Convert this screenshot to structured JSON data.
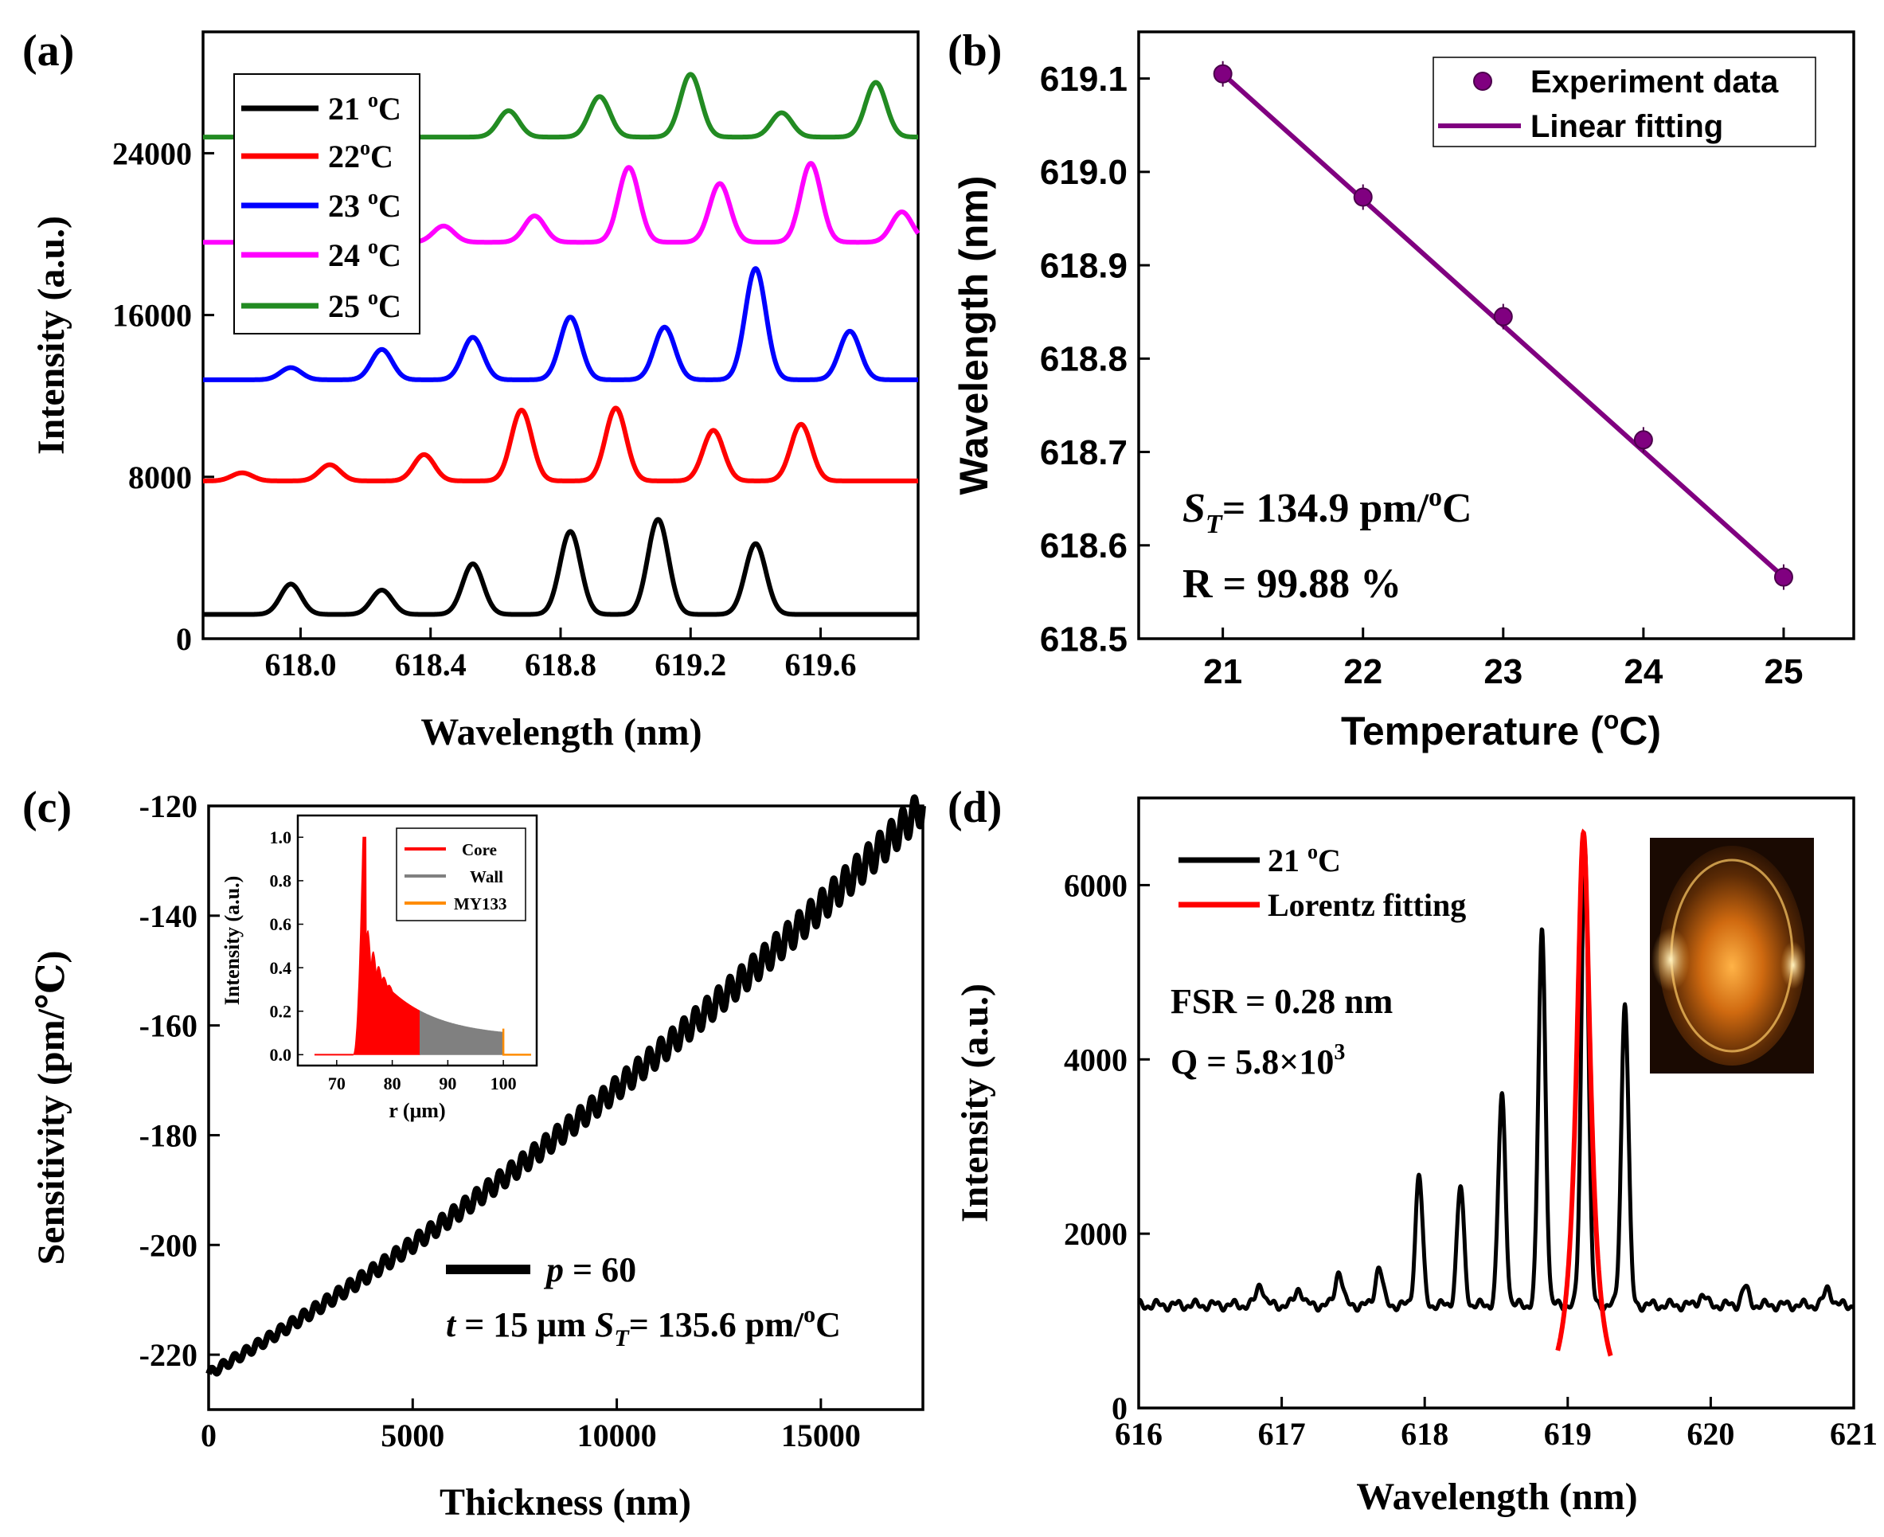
{
  "chart_data": [
    {
      "panel_label": "(a)",
      "type": "line",
      "xlabel": "Wavelength (nm)",
      "ylabel": "Intensity (a.u.)",
      "xlim": [
        617.7,
        619.9
      ],
      "ylim": [
        0,
        30000
      ],
      "xticks": [
        "618.0",
        "618.4",
        "618.8",
        "619.2",
        "619.6"
      ],
      "xtick_values": [
        618.0,
        618.4,
        618.8,
        619.2,
        619.6
      ],
      "yticks": [
        "0",
        "8000",
        "16000",
        "24000"
      ],
      "ytick_values": [
        0,
        8000,
        16000,
        24000
      ],
      "legend_position": "top-left",
      "series": [
        {
          "name": "21 °C",
          "label_base": "21 ",
          "label_sup": "o",
          "label_tail": "C",
          "color": "#000000",
          "baseline": 1200,
          "peaks": [
            [
              617.97,
              1500
            ],
            [
              618.25,
              1200
            ],
            [
              618.53,
              2500
            ],
            [
              618.83,
              4100
            ],
            [
              619.1,
              4700
            ],
            [
              619.4,
              3500
            ]
          ]
        },
        {
          "name": "22 °C",
          "label_base": "22",
          "label_sup": "o",
          "label_tail": "C",
          "color": "#ff0000",
          "baseline": 7800,
          "peaks": [
            [
              617.82,
              400
            ],
            [
              618.09,
              800
            ],
            [
              618.38,
              1300
            ],
            [
              618.68,
              3500
            ],
            [
              618.97,
              3600
            ],
            [
              619.27,
              2500
            ],
            [
              619.54,
              2800
            ]
          ]
        },
        {
          "name": "23 °C",
          "label_base": "23 ",
          "label_sup": "o",
          "label_tail": "C",
          "color": "#0000ff",
          "baseline": 12800,
          "peaks": [
            [
              617.97,
              600
            ],
            [
              618.25,
              1500
            ],
            [
              618.53,
              2100
            ],
            [
              618.83,
              3100
            ],
            [
              619.12,
              2600
            ],
            [
              619.4,
              5500
            ],
            [
              619.69,
              2400
            ]
          ]
        },
        {
          "name": "24 °C",
          "label_base": "24 ",
          "label_sup": "o",
          "label_tail": "C",
          "color": "#ff00ff",
          "baseline": 19600,
          "peaks": [
            [
              618.44,
              800
            ],
            [
              618.72,
              1300
            ],
            [
              619.01,
              3700
            ],
            [
              619.29,
              2900
            ],
            [
              619.57,
              3900
            ],
            [
              619.85,
              1500
            ]
          ]
        },
        {
          "name": "25 °C",
          "label_base": "25 ",
          "label_sup": "o",
          "label_tail": "C",
          "color": "#228b22",
          "baseline": 24800,
          "peaks": [
            [
              618.64,
              1300
            ],
            [
              618.92,
              2000
            ],
            [
              619.2,
              3100
            ],
            [
              619.48,
              1200
            ],
            [
              619.77,
              2700
            ]
          ]
        }
      ]
    },
    {
      "panel_label": "(b)",
      "type": "scatter",
      "xlabel_base": "Temperature (",
      "xlabel_sup": "o",
      "xlabel_tail": "C)",
      "ylabel": "Wavelength (nm)",
      "xlim": [
        20.4,
        25.5
      ],
      "ylim": [
        618.5,
        619.15
      ],
      "xticks": [
        "21",
        "22",
        "23",
        "24",
        "25"
      ],
      "xtick_values": [
        21,
        22,
        23,
        24,
        25
      ],
      "yticks": [
        "618.5",
        "618.6",
        "618.7",
        "618.8",
        "618.9",
        "619.0",
        "619.1"
      ],
      "ytick_values": [
        618.5,
        618.6,
        618.7,
        618.8,
        618.9,
        619.0,
        619.1
      ],
      "x": [
        21,
        22,
        23,
        24,
        25
      ],
      "y": [
        619.105,
        618.973,
        618.845,
        618.713,
        618.566
      ],
      "fit": {
        "x": [
          21,
          25
        ],
        "y": [
          619.105,
          618.566
        ]
      },
      "color": "#800080",
      "legend_position": "top-right",
      "legend": [
        "Experiment data",
        "Linear fitting"
      ],
      "annotation_st_sym": "S",
      "annotation_st_sub": "T",
      "annotation_st_val": "= 134.9 pm/",
      "annotation_st_sup": "o",
      "annotation_st_tail": "C",
      "annotation_r": "R = 99.88 %"
    },
    {
      "panel_label": "(c)",
      "type": "line",
      "xlabel": "Thickness (nm)",
      "ylabel": "Sensitivity (pm/℃)",
      "xlim": [
        0,
        17500
      ],
      "ylim": [
        -230,
        -120
      ],
      "xticks": [
        "0",
        "5000",
        "10000",
        "15000"
      ],
      "xtick_values": [
        0,
        5000,
        10000,
        15000
      ],
      "yticks": [
        "-220",
        "-200",
        "-180",
        "-160",
        "-140",
        "-120"
      ],
      "ytick_values": [
        -220,
        -200,
        -180,
        -160,
        -140,
        -120
      ],
      "series": [
        {
          "name": "p = 60",
          "color": "#000000",
          "start": [
            0,
            -223.5
          ],
          "end": [
            17500,
            -120
          ],
          "oscillation": 1.5
        }
      ],
      "legend_var": "p",
      "legend_val": " = 60",
      "annotation_t_var": "t",
      "annotation_t_val": " = 15 μm ",
      "annotation_st_sym": "S",
      "annotation_st_sub": "T",
      "annotation_st_val": "= 135.6 pm/",
      "annotation_st_sup": "o",
      "annotation_st_tail": "C",
      "inset": {
        "type": "area",
        "xlabel": "r (μm)",
        "ylabel": "Intensity (a.u.)",
        "xlim": [
          63,
          106
        ],
        "ylim": [
          -0.05,
          1.1
        ],
        "xticks": [
          "70",
          "80",
          "90",
          "100"
        ],
        "xtick_values": [
          70,
          80,
          90,
          100
        ],
        "yticks": [
          "0.0",
          "0.2",
          "0.4",
          "0.6",
          "0.8",
          "1.0"
        ],
        "ytick_values": [
          0,
          0.2,
          0.4,
          0.6,
          0.8,
          1.0
        ],
        "legend": [
          "Core",
          "Wall",
          "MY133"
        ],
        "colors": [
          "#ff0000",
          "#808080",
          "#ff8c00"
        ],
        "regions": {
          "core": [
            74,
            85
          ],
          "wall": [
            85,
            100
          ],
          "my133": [
            100,
            105
          ]
        },
        "peak": [
          74.7,
          1.0
        ]
      }
    },
    {
      "panel_label": "(d)",
      "type": "line",
      "xlabel": "Wavelength (nm)",
      "ylabel": "Intensity (a.u.)",
      "xlim": [
        616,
        621
      ],
      "ylim": [
        0,
        7000
      ],
      "xticks": [
        "616",
        "617",
        "618",
        "619",
        "620",
        "621"
      ],
      "xtick_values": [
        616,
        617,
        618,
        619,
        620,
        621
      ],
      "yticks": [
        "0",
        "2000",
        "4000",
        "6000"
      ],
      "ytick_values": [
        0,
        2000,
        4000,
        6000
      ],
      "series": [
        {
          "name": "21 °C",
          "label_base": "21 ",
          "label_sup": "o",
          "label_tail": "C",
          "color": "#000000",
          "baseline": 1180,
          "peaks": [
            [
              616.85,
              250
            ],
            [
              617.12,
              200
            ],
            [
              617.4,
              400
            ],
            [
              617.68,
              450
            ],
            [
              617.96,
              1500
            ],
            [
              618.25,
              1350
            ],
            [
              618.54,
              2400
            ],
            [
              618.82,
              4300
            ],
            [
              619.12,
              5300
            ],
            [
              619.4,
              3500
            ],
            [
              619.94,
              120
            ],
            [
              620.24,
              200
            ],
            [
              620.82,
              200
            ]
          ]
        },
        {
          "name": "Lorentz fitting",
          "color": "#ff0000",
          "center": 619.11,
          "peak": 6600,
          "xrange": [
            618.93,
            619.3
          ]
        }
      ],
      "annotation_fsr": "FSR = 0.28 nm",
      "annotation_q_base": "Q = 5.8×10",
      "annotation_q_sup": "3"
    }
  ]
}
